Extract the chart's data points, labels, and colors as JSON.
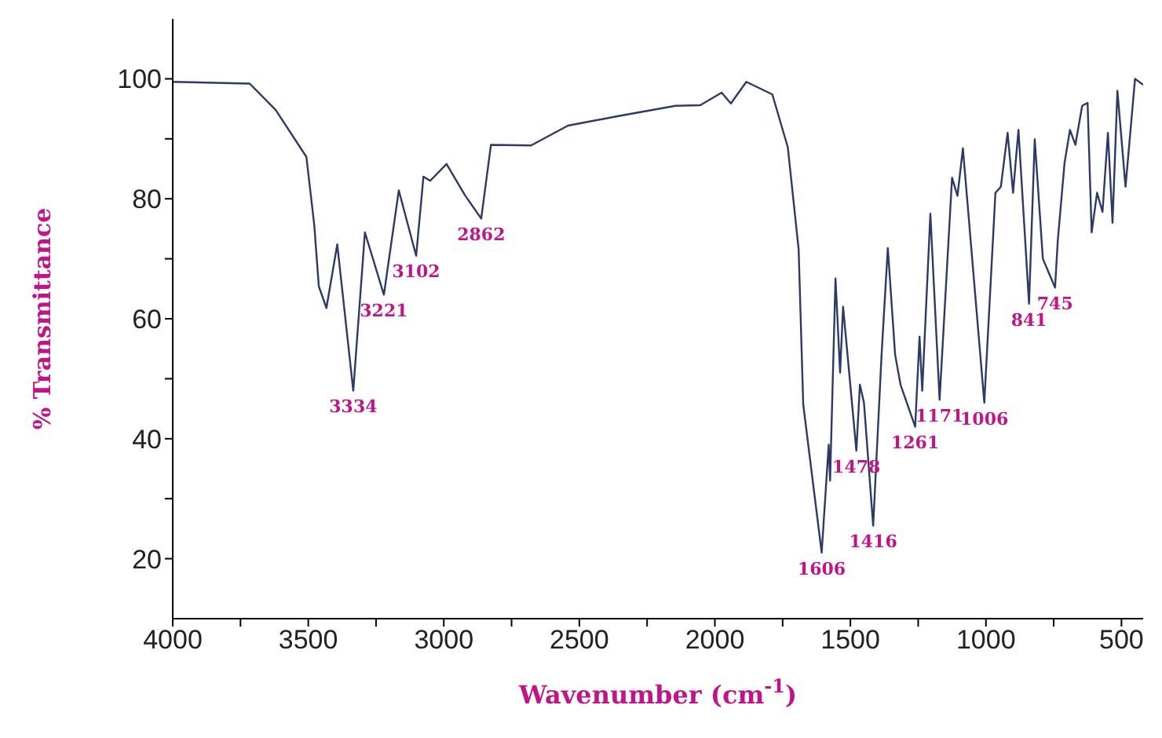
{
  "chart_data": {
    "type": "line",
    "xlabel": "Wavenumber (cm$^{-1}$)",
    "ylabel": "% Transmittance",
    "xlim": [
      4000,
      420
    ],
    "ylim": [
      10,
      110
    ],
    "xticks": [
      4000,
      {
        "value": 3750,
        "label": null
      },
      3500,
      {
        "value": 3250,
        "label": null
      },
      3000,
      {
        "value": 2750,
        "label": null
      },
      2500,
      {
        "value": 2250,
        "label": null
      },
      2000,
      {
        "value": 1750,
        "label": null
      },
      1500,
      {
        "value": 1250,
        "label": null
      },
      1000,
      {
        "value": 750,
        "label": null
      },
      500
    ],
    "yticks": [
      20,
      {
        "value": 30,
        "label": null
      },
      40,
      {
        "value": 50,
        "label": null
      },
      60,
      {
        "value": 70,
        "label": null
      },
      80,
      {
        "value": 90,
        "label": null
      },
      100
    ],
    "grid": false,
    "legend": false,
    "marker": "none",
    "line_style": "solid",
    "series": [
      {
        "color": "#2b3a67",
        "x": [
          4000,
          3716,
          3620,
          3507,
          3478,
          3461,
          3433,
          3393,
          3334,
          3291,
          3221,
          3166,
          3102,
          3075,
          3050,
          2990,
          2922,
          2862,
          2826,
          2678,
          2542,
          2355,
          2145,
          2054,
          1975,
          1941,
          1884,
          1788,
          1731,
          1691,
          1674,
          1606,
          1580,
          1575,
          1555,
          1538,
          1527,
          1478,
          1465,
          1450,
          1416,
          1385,
          1362,
          1335,
          1315,
          1261,
          1245,
          1235,
          1205,
          1171,
          1125,
          1105,
          1085,
          1006,
          965,
          945,
          920,
          900,
          880,
          841,
          820,
          790,
          745,
          735,
          710,
          690,
          670,
          645,
          625,
          610,
          590,
          570,
          550,
          533,
          515,
          485,
          450,
          420
        ],
        "values": [
          99.5,
          99.2,
          94.8,
          87,
          75.7,
          65.4,
          61.8,
          72.4,
          48,
          74.4,
          64,
          81.4,
          70.5,
          83.7,
          83,
          85.8,
          80.6,
          76.7,
          89,
          88.9,
          92.2,
          93.8,
          95.5,
          95.6,
          97.7,
          95.9,
          99.5,
          97.4,
          88.6,
          71.6,
          45.7,
          21,
          39,
          33,
          66.7,
          51,
          62,
          38,
          49,
          46,
          25.5,
          54,
          71.8,
          54,
          49,
          42,
          57,
          48,
          77.5,
          46.5,
          83.5,
          80.5,
          88.4,
          46,
          81,
          82,
          91,
          81,
          91.5,
          62.5,
          89.9,
          70,
          65.2,
          73,
          86,
          91.5,
          89,
          95.5,
          96,
          74.4,
          81,
          77.8,
          91,
          76,
          98,
          82,
          100,
          99
        ]
      }
    ],
    "annotations": [
      {
        "text": "3334",
        "x": 3334,
        "y": 48
      },
      {
        "text": "3221",
        "x": 3221,
        "y": 64
      },
      {
        "text": "3102",
        "x": 3102,
        "y": 70.5
      },
      {
        "text": "2862",
        "x": 2862,
        "y": 76.7
      },
      {
        "text": "1606",
        "x": 1606,
        "y": 21
      },
      {
        "text": "1478",
        "x": 1478,
        "y": 38
      },
      {
        "text": "1416",
        "x": 1416,
        "y": 25.5
      },
      {
        "text": "1261",
        "x": 1261,
        "y": 42
      },
      {
        "text": "1171",
        "x": 1171,
        "y": 46.5
      },
      {
        "text": "1006",
        "x": 1006,
        "y": 46
      },
      {
        "text": "841",
        "x": 841,
        "y": 62.5
      },
      {
        "text": "745",
        "x": 745,
        "y": 65.2
      }
    ]
  }
}
